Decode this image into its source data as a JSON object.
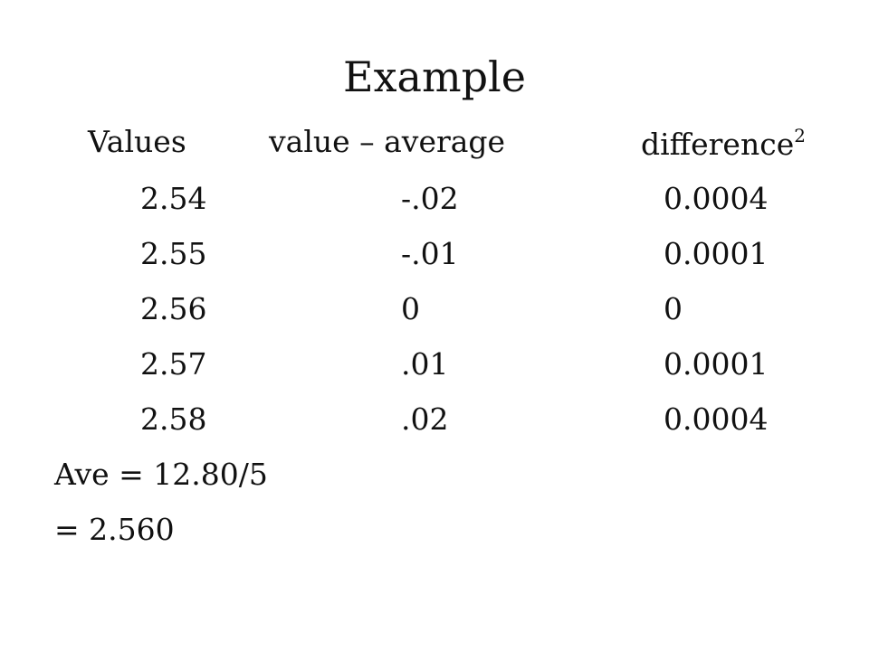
{
  "title": "Example",
  "table": {
    "headers": [
      "Values",
      "value – average",
      "difference"
    ],
    "header_superscript": "2",
    "rows": [
      [
        "2.54",
        "-.02",
        "0.0004"
      ],
      [
        "2.55",
        "-.01",
        "0.0001"
      ],
      [
        "2.56",
        "0",
        "0"
      ],
      [
        "2.57",
        ".01",
        "0.0001"
      ],
      [
        "2.58",
        ".02",
        "0.0004"
      ]
    ]
  },
  "footer": [
    "Ave = 12.80/5",
    "= 2.560"
  ]
}
